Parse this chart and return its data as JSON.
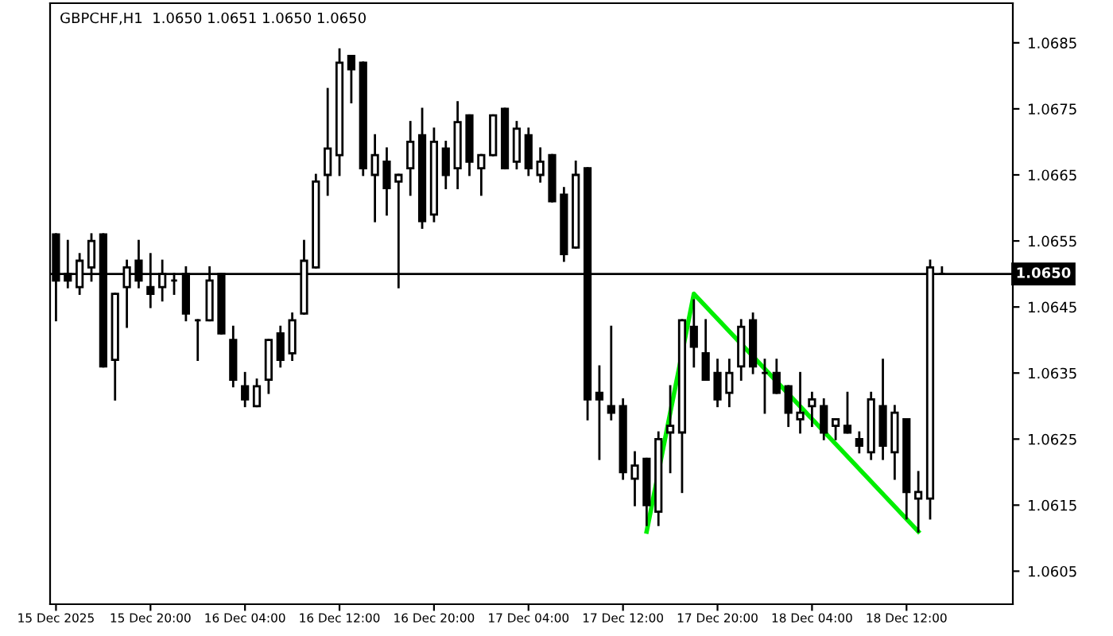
{
  "chart_data": {
    "type": "candlestick",
    "title": "GBPCHF,H1  1.0650 1.0651 1.0650 1.0650",
    "x": [
      "2025-12-15T12:00",
      "2025-12-15T13:00",
      "2025-12-15T14:00",
      "2025-12-15T15:00",
      "2025-12-15T16:00",
      "2025-12-15T17:00",
      "2025-12-15T18:00",
      "2025-12-15T19:00",
      "2025-12-15T20:00",
      "2025-12-15T21:00",
      "2025-12-15T22:00",
      "2025-12-15T23:00",
      "2025-12-16T00:00",
      "2025-12-16T01:00",
      "2025-12-16T02:00",
      "2025-12-16T03:00",
      "2025-12-16T04:00",
      "2025-12-16T05:00",
      "2025-12-16T06:00",
      "2025-12-16T07:00",
      "2025-12-16T08:00",
      "2025-12-16T09:00",
      "2025-12-16T10:00",
      "2025-12-16T11:00",
      "2025-12-16T12:00",
      "2025-12-16T13:00",
      "2025-12-16T14:00",
      "2025-12-16T15:00",
      "2025-12-16T16:00",
      "2025-12-16T17:00",
      "2025-12-16T18:00",
      "2025-12-16T19:00",
      "2025-12-16T20:00",
      "2025-12-16T21:00",
      "2025-12-16T22:00",
      "2025-12-16T23:00",
      "2025-12-17T00:00",
      "2025-12-17T01:00",
      "2025-12-17T02:00",
      "2025-12-17T03:00",
      "2025-12-17T04:00",
      "2025-12-17T05:00",
      "2025-12-17T06:00",
      "2025-12-17T07:00",
      "2025-12-17T08:00",
      "2025-12-17T09:00",
      "2025-12-17T10:00",
      "2025-12-17T11:00",
      "2025-12-17T12:00",
      "2025-12-17T13:00",
      "2025-12-17T14:00",
      "2025-12-17T15:00",
      "2025-12-17T16:00",
      "2025-12-17T17:00",
      "2025-12-17T18:00",
      "2025-12-17T19:00",
      "2025-12-17T20:00",
      "2025-12-17T21:00",
      "2025-12-17T22:00",
      "2025-12-17T23:00",
      "2025-12-18T00:00",
      "2025-12-18T01:00",
      "2025-12-18T02:00",
      "2025-12-18T03:00",
      "2025-12-18T04:00",
      "2025-12-18T05:00",
      "2025-12-18T06:00",
      "2025-12-18T07:00",
      "2025-12-18T08:00",
      "2025-12-18T09:00",
      "2025-12-18T10:00",
      "2025-12-18T11:00",
      "2025-12-18T12:00",
      "2025-12-18T13:00",
      "2025-12-18T14:00",
      "2025-12-18T15:00"
    ],
    "ohlc": [
      [
        1.0656,
        1.0656,
        1.0643,
        1.0649
      ],
      [
        1.065,
        1.0655,
        1.0648,
        1.0649
      ],
      [
        1.0648,
        1.0653,
        1.0647,
        1.0652
      ],
      [
        1.0651,
        1.0656,
        1.0649,
        1.0655
      ],
      [
        1.0656,
        1.0656,
        1.0636,
        1.0636
      ],
      [
        1.0637,
        1.0647,
        1.0631,
        1.0647
      ],
      [
        1.0648,
        1.0652,
        1.0642,
        1.0651
      ],
      [
        1.0652,
        1.0655,
        1.0648,
        1.0649
      ],
      [
        1.0648,
        1.0653,
        1.0645,
        1.0647
      ],
      [
        1.0648,
        1.0652,
        1.0646,
        1.065
      ],
      [
        1.0649,
        1.065,
        1.0647,
        1.0649
      ],
      [
        1.065,
        1.0651,
        1.0643,
        1.0644
      ],
      [
        1.0643,
        1.0643,
        1.0637,
        1.0643
      ],
      [
        1.0643,
        1.0651,
        1.0643,
        1.0649
      ],
      [
        1.065,
        1.065,
        1.0641,
        1.0641
      ],
      [
        1.064,
        1.0642,
        1.0633,
        1.0634
      ],
      [
        1.0633,
        1.0635,
        1.063,
        1.0631
      ],
      [
        1.063,
        1.0634,
        1.063,
        1.0633
      ],
      [
        1.0634,
        1.064,
        1.0632,
        1.064
      ],
      [
        1.0641,
        1.0642,
        1.0636,
        1.0637
      ],
      [
        1.0638,
        1.0644,
        1.0637,
        1.0643
      ],
      [
        1.0644,
        1.0655,
        1.0644,
        1.0652
      ],
      [
        1.0651,
        1.0665,
        1.0651,
        1.0664
      ],
      [
        1.0665,
        1.0678,
        1.0662,
        1.0669
      ],
      [
        1.0668,
        1.0684,
        1.0665,
        1.0682
      ],
      [
        1.0683,
        1.0683,
        1.0676,
        1.0681
      ],
      [
        1.0682,
        1.0682,
        1.0665,
        1.0666
      ],
      [
        1.0665,
        1.0671,
        1.0658,
        1.0668
      ],
      [
        1.0667,
        1.0669,
        1.0659,
        1.0663
      ],
      [
        1.0664,
        1.0665,
        1.0648,
        1.0665
      ],
      [
        1.0666,
        1.0673,
        1.0662,
        1.067
      ],
      [
        1.0671,
        1.0675,
        1.0657,
        1.0658
      ],
      [
        1.0659,
        1.0672,
        1.0658,
        1.067
      ],
      [
        1.0669,
        1.067,
        1.0663,
        1.0665
      ],
      [
        1.0666,
        1.0676,
        1.0663,
        1.0673
      ],
      [
        1.0674,
        1.0674,
        1.0665,
        1.0667
      ],
      [
        1.0666,
        1.0668,
        1.0662,
        1.0668
      ],
      [
        1.0668,
        1.0674,
        1.0668,
        1.0674
      ],
      [
        1.0675,
        1.0675,
        1.0666,
        1.0666
      ],
      [
        1.0667,
        1.0673,
        1.0666,
        1.0672
      ],
      [
        1.0671,
        1.0672,
        1.0665,
        1.0666
      ],
      [
        1.0665,
        1.0669,
        1.0664,
        1.0667
      ],
      [
        1.0668,
        1.0668,
        1.0661,
        1.0661
      ],
      [
        1.0662,
        1.0663,
        1.0652,
        1.0653
      ],
      [
        1.0654,
        1.0667,
        1.0654,
        1.0665
      ],
      [
        1.0666,
        1.0666,
        1.0628,
        1.0631
      ],
      [
        1.0632,
        1.0636,
        1.0622,
        1.0631
      ],
      [
        1.063,
        1.0642,
        1.0628,
        1.0629
      ],
      [
        1.063,
        1.0631,
        1.0619,
        1.062
      ],
      [
        1.0619,
        1.0623,
        1.0615,
        1.0621
      ],
      [
        1.0622,
        1.0622,
        1.0612,
        1.0615
      ],
      [
        1.0614,
        1.0626,
        1.0612,
        1.0625
      ],
      [
        1.0626,
        1.0633,
        1.062,
        1.0627
      ],
      [
        1.0626,
        1.0643,
        1.0617,
        1.0643
      ],
      [
        1.0642,
        1.0646,
        1.0636,
        1.0639
      ],
      [
        1.0638,
        1.0643,
        1.0634,
        1.0634
      ],
      [
        1.0635,
        1.0637,
        1.063,
        1.0631
      ],
      [
        1.0632,
        1.0637,
        1.063,
        1.0635
      ],
      [
        1.0636,
        1.0643,
        1.0634,
        1.0642
      ],
      [
        1.0643,
        1.0644,
        1.0635,
        1.0636
      ],
      [
        1.0635,
        1.0637,
        1.0629,
        1.0635
      ],
      [
        1.0635,
        1.0637,
        1.0632,
        1.0632
      ],
      [
        1.0633,
        1.0633,
        1.0627,
        1.0629
      ],
      [
        1.0628,
        1.0635,
        1.0626,
        1.0629
      ],
      [
        1.063,
        1.0632,
        1.0627,
        1.0631
      ],
      [
        1.063,
        1.0631,
        1.0625,
        1.0626
      ],
      [
        1.0627,
        1.0628,
        1.0625,
        1.0628
      ],
      [
        1.0627,
        1.0632,
        1.0626,
        1.0626
      ],
      [
        1.0625,
        1.0626,
        1.0623,
        1.0624
      ],
      [
        1.0623,
        1.0632,
        1.0622,
        1.0631
      ],
      [
        1.063,
        1.0637,
        1.0622,
        1.0624
      ],
      [
        1.0623,
        1.063,
        1.0619,
        1.0629
      ],
      [
        1.0628,
        1.0628,
        1.0613,
        1.0617
      ],
      [
        1.0616,
        1.062,
        1.0611,
        1.0617
      ],
      [
        1.0616,
        1.0652,
        1.0613,
        1.0651
      ],
      [
        1.065,
        1.0651,
        1.065,
        1.065
      ]
    ],
    "series": [
      {
        "type": "line",
        "color": "#00ee00",
        "x": [
          "2025-12-17T14:00",
          "2025-12-17T18:00",
          "2025-12-18T13:00"
        ],
        "values": [
          1.0611,
          1.0647,
          1.0611
        ]
      }
    ],
    "xlim": [
      "2025-12-15T11:30",
      "2025-12-18T21:00"
    ],
    "xticks": [
      {
        "value": "2025-12-15T12:00",
        "label": "15 Dec 2025"
      },
      {
        "value": "2025-12-15T20:00",
        "label": "15 Dec 20:00"
      },
      {
        "value": "2025-12-16T04:00",
        "label": "16 Dec 04:00"
      },
      {
        "value": "2025-12-16T12:00",
        "label": "16 Dec 12:00"
      },
      {
        "value": "2025-12-16T20:00",
        "label": "16 Dec 20:00"
      },
      {
        "value": "2025-12-17T04:00",
        "label": "17 Dec 04:00"
      },
      {
        "value": "2025-12-17T12:00",
        "label": "17 Dec 12:00"
      },
      {
        "value": "2025-12-17T20:00",
        "label": "17 Dec 20:00"
      },
      {
        "value": "2025-12-18T04:00",
        "label": "18 Dec 04:00"
      },
      {
        "value": "2025-12-18T12:00",
        "label": "18 Dec 12:00"
      }
    ],
    "ylim": [
      1.06,
      1.0691
    ],
    "yticks": [
      1.0605,
      1.0615,
      1.0625,
      1.0635,
      1.0645,
      1.0655,
      1.0665,
      1.0675,
      1.0685
    ],
    "ref_lines": [
      {
        "axis": "y",
        "value": 1.065,
        "label": "1.0650",
        "color": "#000000"
      }
    ],
    "grid": false
  }
}
